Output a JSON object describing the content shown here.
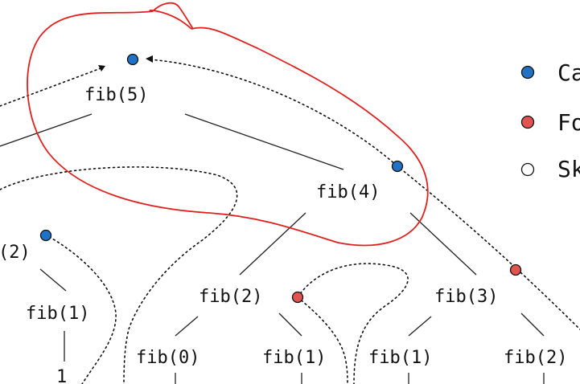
{
  "nodes": {
    "fib5": "fib(5)",
    "fib4": "fib(4)",
    "fib2_left": "(2)",
    "fib1_left": "fib(1)",
    "fib1_left_value": "1",
    "fib2_mid": "fib(2)",
    "fib3": "fib(3)",
    "fib0": "fib(0)",
    "fib1_mid": "fib(1)",
    "fib1_right": "fib(1)",
    "fib2_right": "fib(2)"
  },
  "legend": {
    "items": [
      {
        "label": "Ca",
        "color": "#1f72c6"
      },
      {
        "label": "Fo",
        "color": "#e25450"
      },
      {
        "label": "Sk",
        "color": "#ffffff"
      }
    ]
  },
  "colors": {
    "call_dot": "#1f72c6",
    "return_dot": "#e25450",
    "highlight": "#e0201e"
  }
}
